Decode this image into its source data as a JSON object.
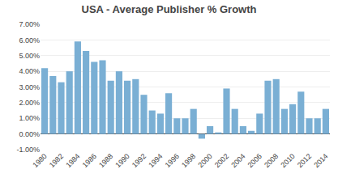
{
  "chart_data": {
    "type": "bar",
    "title": "USA - Average Publisher % Growth",
    "categories": [
      "1980",
      null,
      "1982",
      null,
      "1984",
      null,
      "1986",
      null,
      "1988",
      null,
      "1990",
      null,
      "1992",
      null,
      "1994",
      null,
      "1996",
      null,
      "1998",
      null,
      "2000",
      null,
      "2002",
      null,
      "2004",
      null,
      "2006",
      null,
      "2008",
      null,
      "2010",
      null,
      "2012",
      null,
      "2014"
    ],
    "values": [
      0.042,
      0.037,
      0.033,
      0.04,
      0.059,
      0.053,
      0.046,
      0.047,
      0.034,
      0.04,
      0.034,
      0.035,
      0.025,
      0.015,
      0.013,
      0.026,
      0.01,
      0.01,
      0.016,
      -0.003,
      0.005,
      0.001,
      0.029,
      0.016,
      0.005,
      0.002,
      0.013,
      0.034,
      0.035,
      0.016,
      0.019,
      0.027,
      0.01,
      0.01,
      0.016
    ],
    "color": "#7aafd4",
    "ylim": [
      -0.01,
      0.07
    ],
    "yticks": [
      {
        "value": -0.01,
        "label": "-1.00%"
      },
      {
        "value": 0.0,
        "label": "0.00%"
      },
      {
        "value": 0.01,
        "label": "1.00%"
      },
      {
        "value": 0.02,
        "label": "2.00%"
      },
      {
        "value": 0.03,
        "label": "3.00%"
      },
      {
        "value": 0.04,
        "label": "4.00%"
      },
      {
        "value": 0.05,
        "label": "5.00%"
      },
      {
        "value": 0.06,
        "label": "6.00%"
      },
      {
        "value": 0.07,
        "label": "7.00%"
      }
    ],
    "grid": true
  }
}
